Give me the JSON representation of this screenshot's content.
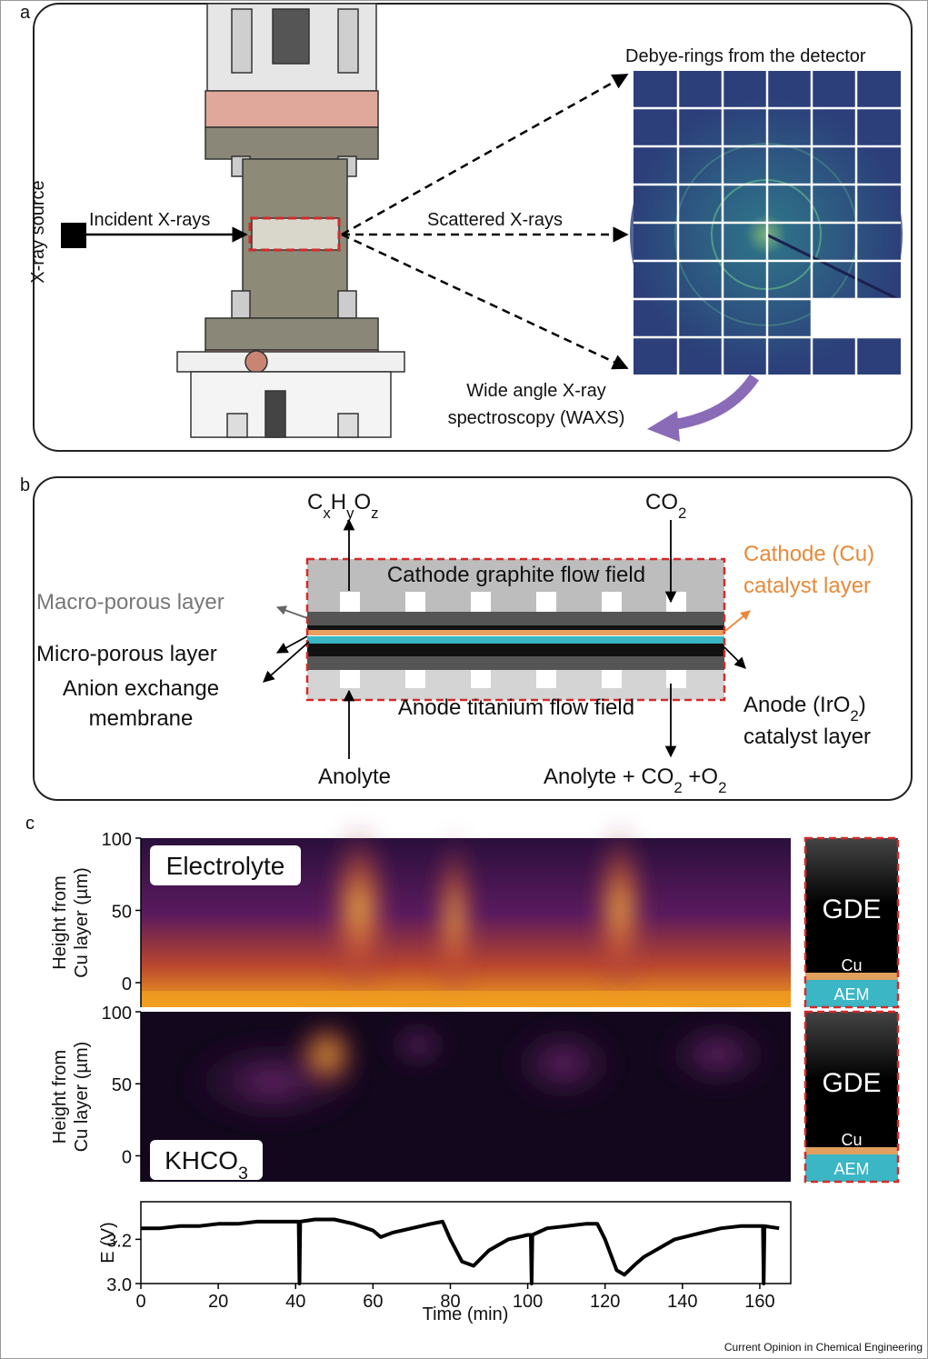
{
  "panel_a": {
    "label": "a",
    "xray_source": "X-ray source",
    "incident": "Incident X-rays",
    "scattered": "Scattered X-rays",
    "debye": "Debye-rings from the detector",
    "waxs_1": "Wide angle X-ray",
    "waxs_2": "spectroscopy (WAXS)"
  },
  "panel_b": {
    "label": "b",
    "product": [
      {
        "t": "C"
      },
      {
        "sub": "x"
      },
      {
        "t": "H"
      },
      {
        "sub": "y"
      },
      {
        "t": "O"
      },
      {
        "sub": "z"
      }
    ],
    "co2": [
      {
        "t": "CO"
      },
      {
        "sub": "2"
      }
    ],
    "cathode_layer_1": "Cathode (Cu)",
    "cathode_layer_2": "catalyst layer",
    "cathode_field": "Cathode graphite flow field",
    "macro": "Macro-porous layer",
    "micro": "Micro-porous layer",
    "aem_1": "Anion exchange",
    "aem_2": "membrane",
    "anode_field": "Anode titanium flow field",
    "anode_layer_1": [
      {
        "t": "Anode (IrO"
      },
      {
        "sub": "2"
      },
      {
        "t": ")"
      }
    ],
    "anode_layer_2": "catalyst layer",
    "anolyte_in": "Anolyte",
    "anolyte_out": [
      {
        "t": "Anolyte + CO"
      },
      {
        "sub": "2"
      },
      {
        "t": " +O"
      },
      {
        "sub": "2"
      }
    ]
  },
  "panel_c": {
    "label": "c",
    "heatmaps": [
      {
        "label": "Electrolyte",
        "ylabel_1": "Height from",
        "ylabel_2": "Cu layer (µm)",
        "ylim": [
          -17,
          100
        ],
        "yticks": [
          0,
          50,
          100
        ]
      },
      {
        "label": [
          {
            "t": "KHCO"
          },
          {
            "sub": "3"
          }
        ],
        "ylabel_1": "Height from",
        "ylabel_2": "Cu layer (µm)",
        "ylim": [
          -18,
          100
        ],
        "yticks": [
          0,
          50,
          100
        ]
      }
    ],
    "gde": [
      {
        "gde": "GDE",
        "cu": "Cu",
        "aem": "AEM"
      },
      {
        "gde": "GDE",
        "cu": "Cu",
        "aem": "AEM"
      }
    ]
  },
  "chart_data": {
    "type": "line",
    "ylabel": "E (V)",
    "xlabel": "Time (min)",
    "x": [
      0,
      5,
      10,
      15,
      20,
      25,
      30,
      35,
      40,
      40.8,
      41,
      41.2,
      45,
      50,
      55,
      60,
      62,
      65,
      70,
      75,
      78,
      80,
      83,
      86,
      90,
      95,
      100,
      100.8,
      101,
      101.2,
      105,
      110,
      115,
      118,
      120,
      123,
      125,
      128,
      130,
      135,
      138,
      145,
      150,
      155,
      160,
      160.8,
      161,
      161.2,
      165
    ],
    "series": [
      {
        "color": "#000000",
        "values": [
          3.25,
          3.25,
          3.26,
          3.26,
          3.27,
          3.27,
          3.28,
          3.28,
          3.28,
          3.28,
          3.0,
          3.28,
          3.29,
          3.29,
          3.27,
          3.24,
          3.21,
          3.23,
          3.25,
          3.27,
          3.28,
          3.2,
          3.1,
          3.08,
          3.15,
          3.2,
          3.22,
          3.22,
          3.0,
          3.22,
          3.25,
          3.26,
          3.27,
          3.27,
          3.2,
          3.06,
          3.04,
          3.09,
          3.12,
          3.17,
          3.2,
          3.23,
          3.25,
          3.26,
          3.26,
          3.26,
          3.0,
          3.26,
          3.25
        ]
      }
    ],
    "xlim": [
      0,
      168
    ],
    "ylim": [
      3.0,
      3.37
    ],
    "xticks": [
      0,
      20,
      40,
      60,
      80,
      100,
      120,
      140,
      160
    ],
    "yticks": [
      {
        "value": 3.0,
        "label": "3.0"
      },
      {
        "value": 3.2,
        "label": "3.2"
      }
    ]
  },
  "footer": "Current Opinion in Chemical Engineering"
}
